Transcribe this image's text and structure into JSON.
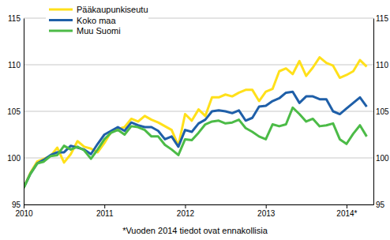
{
  "chart_data": {
    "type": "line",
    "annotations": [
      "*Vuoden 2014 tiedot ovat ennakollisia"
    ],
    "categories": [
      "2010",
      null,
      null,
      null,
      null,
      null,
      null,
      null,
      null,
      null,
      null,
      null,
      "2011",
      null,
      null,
      null,
      null,
      null,
      null,
      null,
      null,
      null,
      null,
      null,
      "2012",
      null,
      null,
      null,
      null,
      null,
      null,
      null,
      null,
      null,
      null,
      null,
      "2013",
      null,
      null,
      null,
      null,
      null,
      null,
      null,
      null,
      null,
      null,
      null,
      "2014*",
      null,
      null,
      null
    ],
    "series": [
      {
        "name": "Pääkaupunkiseutu",
        "color": "#ffe01a",
        "values": [
          96.8,
          98.4,
          99.6,
          99.9,
          100.2,
          101.1,
          99.5,
          100.4,
          101.8,
          101.2,
          101.0,
          100.6,
          101.6,
          102.8,
          103.1,
          103.3,
          104.2,
          103.9,
          104.5,
          104.1,
          103.8,
          103.4,
          103.0,
          101.3,
          104.7,
          104.0,
          105.2,
          104.5,
          106.5,
          106.5,
          106.8,
          106.6,
          107.0,
          107.3,
          107.3,
          106.1,
          107.1,
          107.4,
          109.3,
          109.6,
          109.0,
          110.4,
          108.8,
          109.7,
          110.8,
          110.2,
          109.9,
          108.6,
          108.9,
          109.3,
          110.5,
          109.8
        ]
      },
      {
        "name": "Koko maa",
        "color": "#1f5fa8",
        "values": [
          96.8,
          98.3,
          99.4,
          99.8,
          100.3,
          100.6,
          100.6,
          101.3,
          101.1,
          100.9,
          100.4,
          101.5,
          102.5,
          102.9,
          103.3,
          102.9,
          103.8,
          103.5,
          103.3,
          103.3,
          102.9,
          102.0,
          102.3,
          101.2,
          103.0,
          102.8,
          103.7,
          104.1,
          105.0,
          105.1,
          105.0,
          104.8,
          105.1,
          104.0,
          104.3,
          105.5,
          105.6,
          106.1,
          106.4,
          107.0,
          107.1,
          105.9,
          106.6,
          106.6,
          106.3,
          106.3,
          105.0,
          104.7,
          105.3,
          105.9,
          106.5,
          105.5
        ]
      },
      {
        "name": "Muu Suomi",
        "color": "#4cbb47",
        "values": [
          96.8,
          98.3,
          99.4,
          99.6,
          100.2,
          100.3,
          101.3,
          100.9,
          101.2,
          100.8,
          99.9,
          100.9,
          102.0,
          102.7,
          103.0,
          102.5,
          103.4,
          103.3,
          103.0,
          102.3,
          102.3,
          101.4,
          100.9,
          100.3,
          102.0,
          101.9,
          102.7,
          103.6,
          103.9,
          104.0,
          103.7,
          103.8,
          104.1,
          103.2,
          102.8,
          102.3,
          102.0,
          103.6,
          103.4,
          103.6,
          105.4,
          104.7,
          103.9,
          104.2,
          103.4,
          103.5,
          103.7,
          102.0,
          101.5,
          102.6,
          103.5,
          102.3
        ]
      }
    ],
    "ylim": [
      95,
      115
    ],
    "yticks": [
      95,
      100,
      105,
      110,
      115
    ],
    "y2lim": [
      95,
      115
    ],
    "y2ticks": [
      95,
      100,
      105,
      110,
      115
    ],
    "grid": true,
    "legend": "top-left"
  }
}
